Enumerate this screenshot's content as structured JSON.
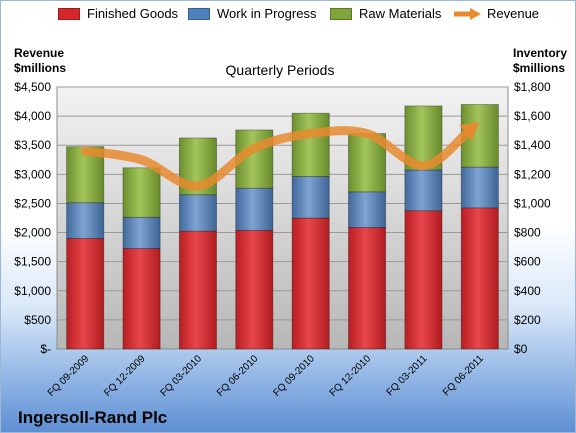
{
  "chart_data": {
    "type": "bar",
    "stacked": true,
    "title": "Quarterly Periods",
    "company": "Ingersoll-Rand Plc",
    "left_axis_title": [
      "Revenue",
      "$millions"
    ],
    "right_axis_title": [
      "Inventory",
      "$millions"
    ],
    "categories": [
      "FQ 09-2009",
      "FQ 12-2009",
      "FQ 03-2010",
      "FQ 06-2010",
      "FQ 09-2010",
      "FQ 12-2010",
      "FQ 03-2011",
      "FQ 06-2011"
    ],
    "left_ticks": [
      "$-",
      "$500",
      "$1,000",
      "$1,500",
      "$2,000",
      "$2,500",
      "$3,000",
      "$3,500",
      "$4,000",
      "$4,500"
    ],
    "right_ticks": [
      "$0",
      "$200",
      "$400",
      "$600",
      "$800",
      "$1,000",
      "$1,200",
      "$1,400",
      "$1,600",
      "$1,800"
    ],
    "left_ylim": [
      0,
      4500
    ],
    "right_ylim": [
      0,
      1800
    ],
    "grid": true,
    "legend_placement": "top",
    "series": [
      {
        "name": "Finished Goods",
        "axis": "right",
        "color": "#d6262b",
        "values": [
          760,
          690,
          810,
          815,
          900,
          835,
          950,
          970
        ]
      },
      {
        "name": "Work in Progress",
        "axis": "right",
        "color": "#4f81bd",
        "values": [
          245,
          215,
          250,
          290,
          285,
          245,
          280,
          280
        ]
      },
      {
        "name": "Raw Materials",
        "axis": "right",
        "color": "#7ea43a",
        "values": [
          385,
          340,
          390,
          400,
          435,
          400,
          440,
          430
        ]
      },
      {
        "name": "Revenue",
        "axis": "left",
        "type": "line",
        "color": "#e8892e",
        "values": [
          3400,
          3250,
          2800,
          3450,
          3700,
          3700,
          3150,
          3900
        ]
      }
    ]
  }
}
